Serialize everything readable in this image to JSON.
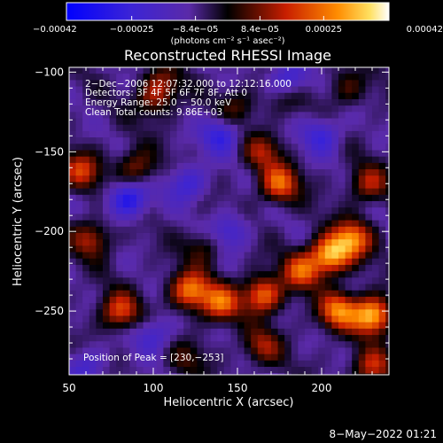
{
  "chart_data": {
    "type": "heatmap",
    "title": "Reconstructed RHESSI Image",
    "xlabel": "Heliocentric X (arcsec)",
    "ylabel": "Heliocentric Y (arcsec)",
    "xlim": [
      50,
      240
    ],
    "ylim": [
      -290,
      -97
    ],
    "x_ticks": [
      {
        "value": 50,
        "label": "50"
      },
      {
        "value": 100,
        "label": "100"
      },
      {
        "value": 150,
        "label": "150"
      },
      {
        "value": 200,
        "label": "200"
      }
    ],
    "y_ticks": [
      {
        "value": -100,
        "label": "−100"
      },
      {
        "value": -150,
        "label": "−150"
      },
      {
        "value": -200,
        "label": "−200"
      },
      {
        "value": -250,
        "label": "−250"
      }
    ],
    "colorbar": {
      "range": [
        -0.00042,
        0.00042
      ],
      "colormap": "blue-purple-black-red-yellow-white",
      "ticks": [
        {
          "value": -0.00042,
          "label": "−0.00042"
        },
        {
          "value": -0.00025,
          "label": "−0.00025"
        },
        {
          "value": -8.4e-05,
          "label": "−8.4e−05"
        },
        {
          "value": 8.4e-05,
          "label": "8.4e−05"
        },
        {
          "value": 0.00025,
          "label": "0.00025"
        },
        {
          "value": 0.00042,
          "label": "0.00042"
        }
      ],
      "unit_label": "(photons cm⁻² s⁻¹ asec⁻²)"
    },
    "annotations": [
      "2−Dec−2006 12:07:32.000 to 12:12:16.000",
      "Detectors: 3F 4F 5F 6F 7F 8F, Att 0",
      "Energy Range: 25.0 − 50.0 keV",
      "Clean     Total counts: 9.86E+03"
    ],
    "peak_label": "Position of Peak = [230,−253]",
    "peak": [
      230,
      -253
    ],
    "hotspots": [
      {
        "x": 57,
        "y": -162,
        "value": 0.00024
      },
      {
        "x": 90,
        "y": -160,
        "value": 0.00018
      },
      {
        "x": 105,
        "y": -108,
        "value": 0.00016
      },
      {
        "x": 100,
        "y": -118,
        "value": 0.00013
      },
      {
        "x": 63,
        "y": -205,
        "value": 0.0002
      },
      {
        "x": 80,
        "y": -250,
        "value": 0.00026
      },
      {
        "x": 130,
        "y": -210,
        "value": 0.00012
      },
      {
        "x": 175,
        "y": -170,
        "value": 0.0003
      },
      {
        "x": 165,
        "y": -150,
        "value": 0.00018
      },
      {
        "x": 150,
        "y": -122,
        "value": 0.00012
      },
      {
        "x": 122,
        "y": -237,
        "value": 0.00034
      },
      {
        "x": 140,
        "y": -245,
        "value": 0.0003
      },
      {
        "x": 165,
        "y": -240,
        "value": 0.00032
      },
      {
        "x": 188,
        "y": -225,
        "value": 0.00028
      },
      {
        "x": 205,
        "y": -215,
        "value": 0.0004
      },
      {
        "x": 218,
        "y": -205,
        "value": 0.00034
      },
      {
        "x": 228,
        "y": -170,
        "value": 0.0002
      },
      {
        "x": 210,
        "y": -250,
        "value": 0.00033
      },
      {
        "x": 230,
        "y": -253,
        "value": 0.00042
      },
      {
        "x": 165,
        "y": -272,
        "value": 0.00018
      },
      {
        "x": 230,
        "y": -285,
        "value": 0.00022
      },
      {
        "x": 120,
        "y": -280,
        "value": 0.0001
      },
      {
        "x": 215,
        "y": -110,
        "value": 0.00012
      },
      {
        "x": 178,
        "y": -115,
        "value": 0.0001
      }
    ],
    "negative_regions": [
      {
        "x": 85,
        "y": -180,
        "value": -0.00026
      },
      {
        "x": 120,
        "y": -170,
        "value": -0.00018
      },
      {
        "x": 180,
        "y": -105,
        "value": -0.0002
      },
      {
        "x": 100,
        "y": -265,
        "value": -0.00015
      },
      {
        "x": 145,
        "y": -200,
        "value": -0.00016
      },
      {
        "x": 200,
        "y": -140,
        "value": -0.00018
      },
      {
        "x": 60,
        "y": -285,
        "value": -0.00014
      },
      {
        "x": 140,
        "y": -140,
        "value": -0.0002
      }
    ]
  },
  "footer": {
    "timestamp": "8−May−2022 01:21"
  }
}
